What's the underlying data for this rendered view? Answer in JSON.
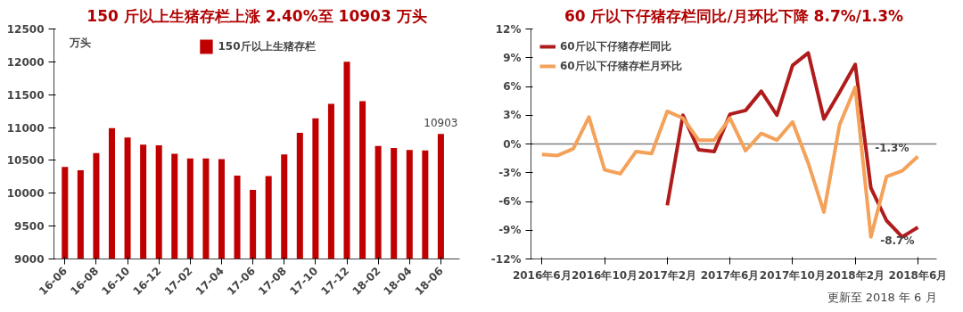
{
  "chart_data": [
    {
      "type": "bar",
      "title": "150 斤以上生猪存栏上涨 2.40%至 10903 万头",
      "ylabel": "万头",
      "categories": [
        "16-06",
        null,
        "16-08",
        null,
        "16-10",
        null,
        "16-12",
        null,
        "17-02",
        null,
        "17-04",
        null,
        "17-06",
        null,
        "17-08",
        null,
        "17-10",
        null,
        "17-12",
        null,
        "18-02",
        null,
        "18-04",
        null,
        "18-06"
      ],
      "series": [
        {
          "name": "150斤以上生猪存栏",
          "color": "#c00000",
          "values": [
            10400,
            10350,
            10610,
            10990,
            10850,
            10740,
            10730,
            10600,
            10530,
            10530,
            10520,
            10270,
            10050,
            10260,
            10590,
            10920,
            11140,
            11360,
            12000,
            11400,
            10720,
            10690,
            10660,
            10650,
            10903
          ],
          "value_labels": [
            null,
            null,
            null,
            null,
            null,
            null,
            null,
            null,
            null,
            null,
            null,
            null,
            null,
            null,
            null,
            null,
            null,
            null,
            null,
            null,
            null,
            null,
            null,
            null,
            "10903"
          ]
        }
      ],
      "ylim": [
        9000,
        12500
      ],
      "yticks": [
        9000,
        9500,
        10000,
        10500,
        11000,
        11500,
        12000,
        12500
      ],
      "grid": false,
      "legend": "top"
    },
    {
      "type": "line",
      "title": "60 斤以下仔猪存栏同比/月环比下降 8.7%/1.3%",
      "annotations": [
        "更新至 2018 年 6 月"
      ],
      "categories": [
        "2016年6月",
        null,
        null,
        null,
        "2016年10月",
        null,
        null,
        null,
        "2017年2月",
        null,
        null,
        null,
        "2017年6月",
        null,
        null,
        null,
        "2017年10月",
        null,
        null,
        null,
        "2018年2月",
        null,
        null,
        null,
        "2018年6月"
      ],
      "series": [
        {
          "name": "60斤以下仔猪存栏同比",
          "color": "#b01c1c",
          "values": [
            null,
            null,
            null,
            null,
            null,
            null,
            null,
            null,
            -6.4,
            3.0,
            -0.6,
            -0.8,
            3.1,
            3.5,
            5.5,
            3.0,
            8.2,
            9.5,
            2.6,
            5.4,
            8.3,
            -4.6,
            -8.0,
            -9.7,
            -8.7
          ],
          "value_labels": [
            null,
            null,
            null,
            null,
            null,
            null,
            null,
            null,
            null,
            null,
            null,
            null,
            null,
            null,
            null,
            null,
            null,
            null,
            null,
            null,
            null,
            null,
            null,
            null,
            "-8.7%"
          ]
        },
        {
          "name": "60斤以下仔猪存栏月环比",
          "color": "#f4a15a",
          "values": [
            -1.1,
            -1.2,
            -0.5,
            2.8,
            -2.7,
            -3.1,
            -0.8,
            -1.0,
            3.4,
            2.7,
            0.4,
            0.4,
            2.7,
            -0.7,
            1.1,
            0.4,
            2.3,
            -2.0,
            -7.1,
            2.0,
            5.9,
            -9.7,
            -3.4,
            -2.8,
            -1.3
          ],
          "value_labels": [
            null,
            null,
            null,
            null,
            null,
            null,
            null,
            null,
            null,
            null,
            null,
            null,
            null,
            null,
            null,
            null,
            null,
            null,
            null,
            null,
            null,
            null,
            null,
            null,
            "-1.3%"
          ]
        }
      ],
      "ylim": [
        -12,
        12
      ],
      "yticks": [
        {
          "value": -12,
          "label": "-12%"
        },
        {
          "value": -9,
          "label": "-9%"
        },
        {
          "value": -6,
          "label": "-6%"
        },
        {
          "value": -3,
          "label": "-3%"
        },
        {
          "value": 0,
          "label": "0%"
        },
        {
          "value": 3,
          "label": "3%"
        },
        {
          "value": 6,
          "label": "6%"
        },
        {
          "value": 9,
          "label": "9%"
        },
        {
          "value": 12,
          "label": "12%"
        }
      ],
      "ref_lines": [
        {
          "axis": "y",
          "value": 0,
          "color": "#808080"
        }
      ],
      "grid": false,
      "legend": "top",
      "line_style": "solid",
      "marker": "none"
    }
  ]
}
